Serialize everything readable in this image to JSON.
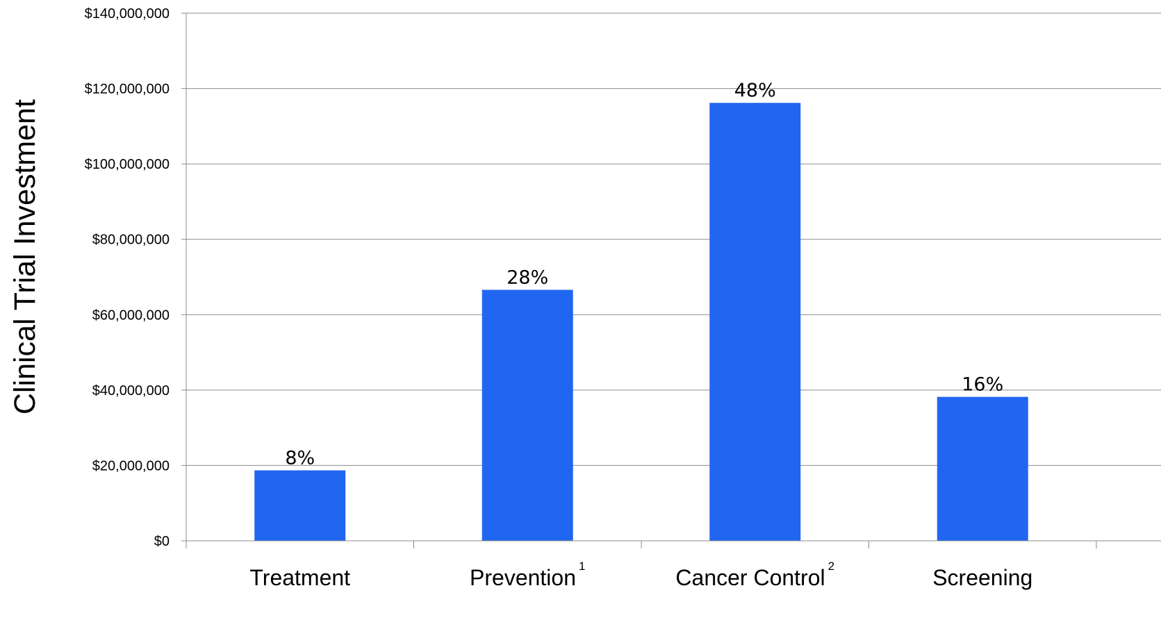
{
  "chart_data": {
    "type": "bar",
    "title": "",
    "xlabel": "",
    "ylabel": "Clinical Trial Investment",
    "ylim": [
      0,
      140000000
    ],
    "yticks": [
      0,
      20000000,
      40000000,
      60000000,
      80000000,
      100000000,
      120000000,
      140000000
    ],
    "ytick_labels": [
      "$0",
      "$20,000,000",
      "$40,000,000",
      "$60,000,000",
      "$80,000,000",
      "$100,000,000",
      "$120,000,000",
      "$140,000,000"
    ],
    "grid": true,
    "legend": "none",
    "bar_color": "#2166F0",
    "categories": [
      {
        "label": "Treatment",
        "sup": ""
      },
      {
        "label": "Prevention",
        "sup": "1"
      },
      {
        "label": "Cancer Control",
        "sup": "2"
      },
      {
        "label": "Screening",
        "sup": ""
      }
    ],
    "values": [
      18700000,
      66600000,
      116200000,
      38200000
    ],
    "data_labels": [
      "8%",
      "28%",
      "48%",
      "16%"
    ]
  }
}
